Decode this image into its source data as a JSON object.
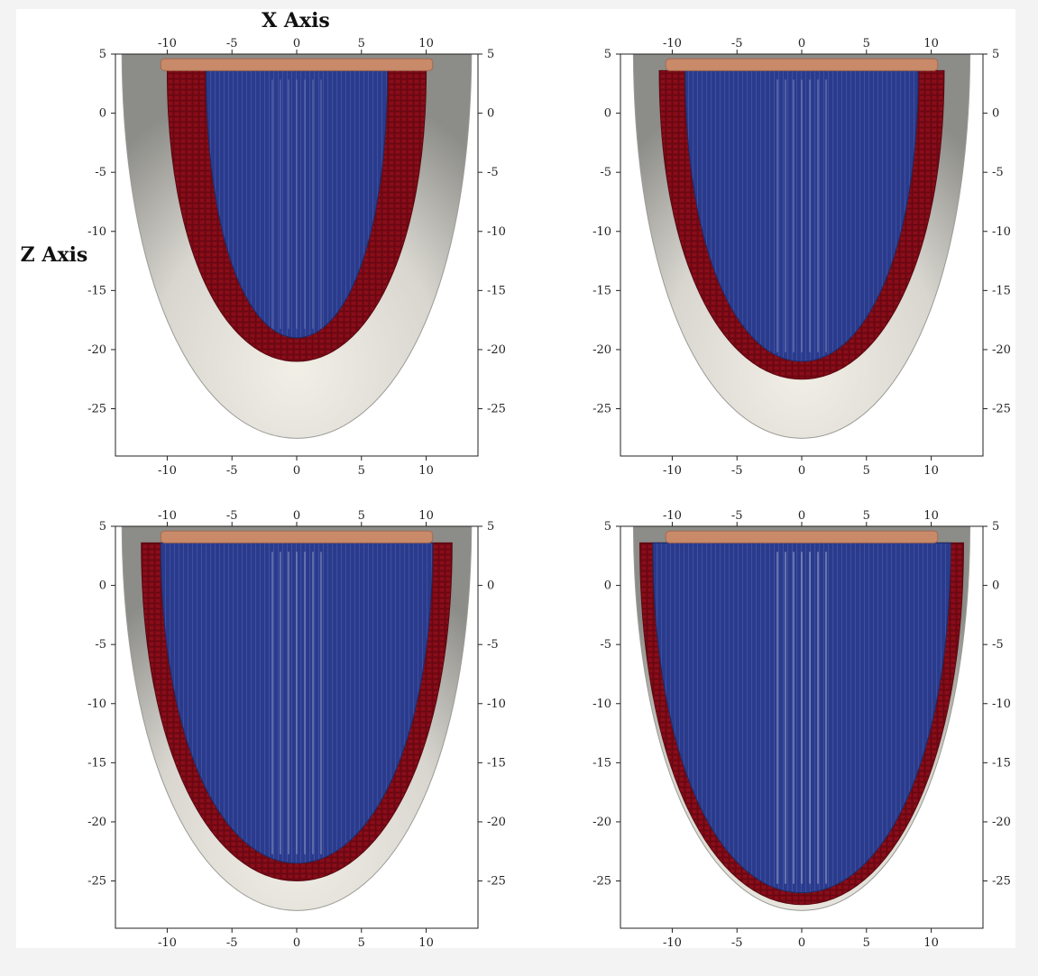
{
  "axis_titles": {
    "x": "X Axis",
    "z": "Z Axis"
  },
  "ticks": {
    "x": [
      "-10",
      "-5",
      "0",
      "5",
      "10"
    ],
    "z": [
      "5",
      "0",
      "-5",
      "-10",
      "-15",
      "-20",
      "-25"
    ]
  },
  "colors": {
    "background": "#ffffff",
    "frame": "#222222",
    "shell_light": "#f1efe6",
    "shell_dark": "#8c8c88",
    "outer_fiber": "#8b0d1a",
    "inner_fiber": "#2b3b8c",
    "base_rim": "#c98a6a"
  },
  "chart_data": [
    {
      "type": "diagram",
      "panel": "top-left",
      "x_ticks": [
        -10,
        -5,
        0,
        5,
        10
      ],
      "z_ticks": [
        5,
        0,
        -5,
        -10,
        -15,
        -20,
        -25
      ],
      "xlim": [
        -14,
        14
      ],
      "zlim": [
        -29,
        5
      ],
      "shell": {
        "half_width": 13.5,
        "apex_z": -27.5
      },
      "outer_fiber_layer": {
        "half_width": 10,
        "apex_z": -21
      },
      "inner_fiber_layer": {
        "half_width": 7,
        "apex_z": -19
      }
    },
    {
      "type": "diagram",
      "panel": "top-right",
      "x_ticks": [
        -10,
        -5,
        0,
        5,
        10
      ],
      "z_ticks": [
        5,
        0,
        -5,
        -10,
        -15,
        -20,
        -25
      ],
      "xlim": [
        -14,
        14
      ],
      "zlim": [
        -29,
        5
      ],
      "shell": {
        "half_width": 13,
        "apex_z": -27.5
      },
      "outer_fiber_layer": {
        "half_width": 11,
        "apex_z": -22.5
      },
      "inner_fiber_layer": {
        "half_width": 9,
        "apex_z": -21
      }
    },
    {
      "type": "diagram",
      "panel": "bottom-left",
      "x_ticks": [
        -10,
        -5,
        0,
        5,
        10
      ],
      "z_ticks": [
        5,
        0,
        -5,
        -10,
        -15,
        -20,
        -25
      ],
      "xlim": [
        -14,
        14
      ],
      "zlim": [
        -29,
        5
      ],
      "shell": {
        "half_width": 13.5,
        "apex_z": -27.5
      },
      "outer_fiber_layer": {
        "half_width": 12,
        "apex_z": -25
      },
      "inner_fiber_layer": {
        "half_width": 10.5,
        "apex_z": -23.5
      }
    },
    {
      "type": "diagram",
      "panel": "bottom-right",
      "x_ticks": [
        -10,
        -5,
        0,
        5,
        10
      ],
      "z_ticks": [
        5,
        0,
        -5,
        -10,
        -15,
        -20,
        -25
      ],
      "xlim": [
        -14,
        14
      ],
      "zlim": [
        -29,
        5
      ],
      "shell": {
        "half_width": 13,
        "apex_z": -27.5
      },
      "outer_fiber_layer": {
        "half_width": 12.5,
        "apex_z": -27
      },
      "inner_fiber_layer": {
        "half_width": 11.5,
        "apex_z": -26
      }
    }
  ]
}
